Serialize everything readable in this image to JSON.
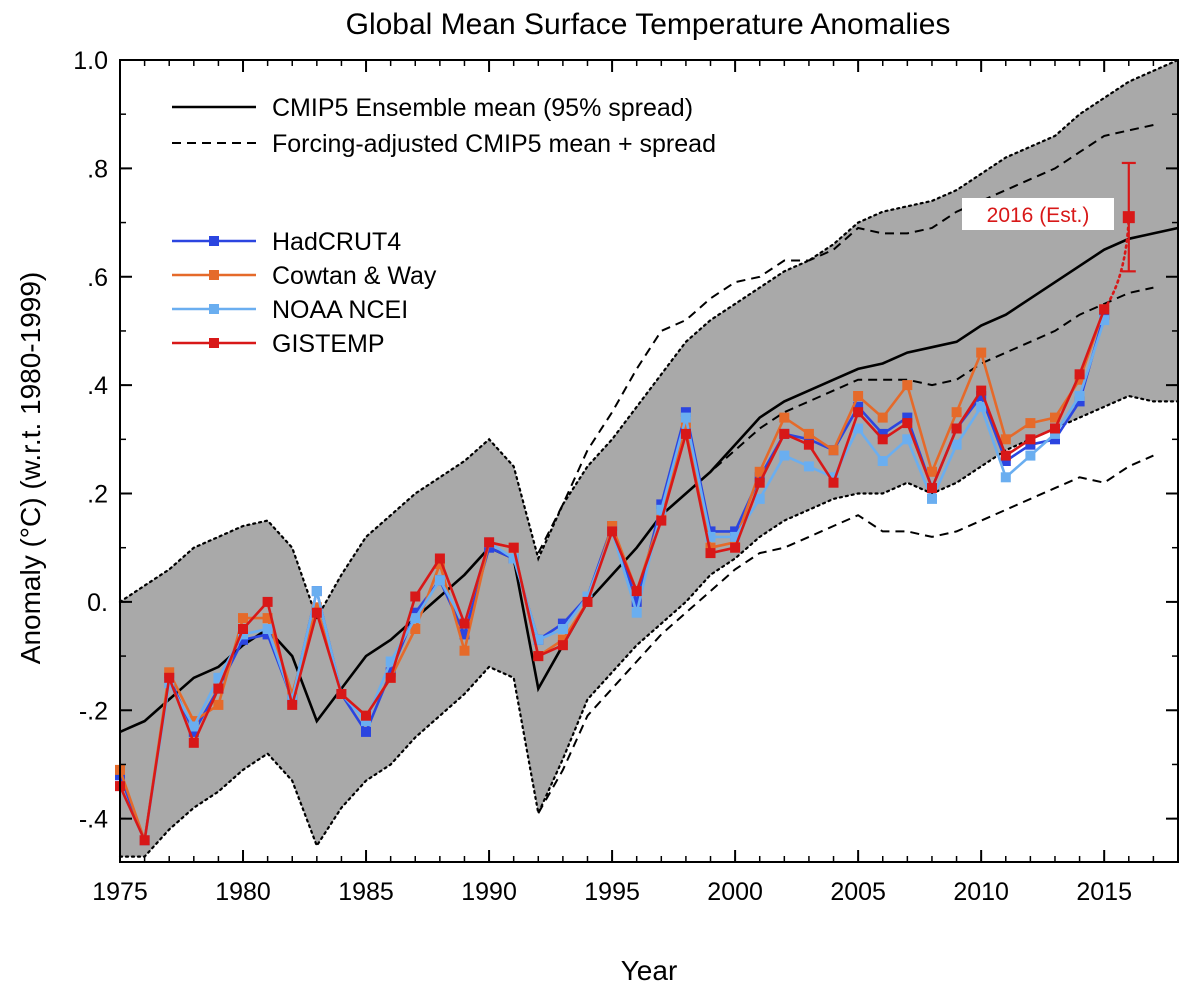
{
  "chart_data": {
    "type": "line",
    "title": "Global Mean Surface Temperature Anomalies",
    "xlabel": "Year",
    "ylabel": "Anomaly (°C) (w.r.t. 1980-1999)",
    "xlim": [
      1975,
      2018
    ],
    "ylim": [
      -0.48,
      1.0
    ],
    "x_ticks": [
      1975,
      1980,
      1985,
      1990,
      1995,
      2000,
      2005,
      2010,
      2015
    ],
    "y_ticks": [
      {
        "value": 1.0,
        "label": "1.0"
      },
      {
        "value": 0.8,
        "label": ".8"
      },
      {
        "value": 0.6,
        "label": ".6"
      },
      {
        "value": 0.4,
        "label": ".4"
      },
      {
        "value": 0.2,
        "label": ".2"
      },
      {
        "value": 0.0,
        "label": "0."
      },
      {
        "value": -0.2,
        "label": "-.2"
      },
      {
        "value": -0.4,
        "label": "-.4"
      }
    ],
    "grid": false,
    "legend_position": "top-left",
    "model": {
      "legend_solid": "CMIP5 Ensemble mean (95% spread)",
      "legend_dashed": "Forcing-adjusted CMIP5 mean + spread",
      "years": [
        1975,
        1976,
        1977,
        1978,
        1979,
        1980,
        1981,
        1982,
        1983,
        1984,
        1985,
        1986,
        1987,
        1988,
        1989,
        1990,
        1991,
        1992,
        1993,
        1994,
        1995,
        1996,
        1997,
        1998,
        1999,
        2000,
        2001,
        2002,
        2003,
        2004,
        2005,
        2006,
        2007,
        2008,
        2009,
        2010,
        2011,
        2012,
        2013,
        2014,
        2015,
        2016,
        2017,
        2018
      ],
      "mean": [
        -0.24,
        -0.22,
        -0.18,
        -0.14,
        -0.12,
        -0.08,
        -0.05,
        -0.1,
        -0.22,
        -0.16,
        -0.1,
        -0.07,
        -0.03,
        0.01,
        0.05,
        0.1,
        0.08,
        -0.16,
        -0.08,
        0.0,
        0.05,
        0.1,
        0.16,
        0.2,
        0.24,
        0.29,
        0.34,
        0.37,
        0.39,
        0.41,
        0.43,
        0.44,
        0.46,
        0.47,
        0.48,
        0.51,
        0.53,
        0.56,
        0.59,
        0.62,
        0.65,
        0.67,
        0.68,
        0.69
      ],
      "lower": [
        -0.47,
        -0.47,
        -0.42,
        -0.38,
        -0.35,
        -0.31,
        -0.28,
        -0.33,
        -0.45,
        -0.38,
        -0.33,
        -0.3,
        -0.25,
        -0.21,
        -0.17,
        -0.12,
        -0.14,
        -0.39,
        -0.29,
        -0.18,
        -0.13,
        -0.08,
        -0.04,
        0.0,
        0.05,
        0.08,
        0.12,
        0.15,
        0.17,
        0.19,
        0.2,
        0.2,
        0.22,
        0.2,
        0.22,
        0.25,
        0.28,
        0.3,
        0.32,
        0.34,
        0.36,
        0.38,
        0.37,
        0.37
      ],
      "upper": [
        0.0,
        0.03,
        0.06,
        0.1,
        0.12,
        0.14,
        0.15,
        0.1,
        -0.03,
        0.05,
        0.12,
        0.16,
        0.2,
        0.23,
        0.26,
        0.3,
        0.25,
        0.08,
        0.18,
        0.25,
        0.3,
        0.36,
        0.42,
        0.48,
        0.52,
        0.55,
        0.58,
        0.61,
        0.63,
        0.66,
        0.7,
        0.72,
        0.73,
        0.74,
        0.76,
        0.79,
        0.82,
        0.84,
        0.86,
        0.9,
        0.93,
        0.96,
        0.98,
        1.0
      ],
      "adj_years": [
        1992,
        1993,
        1994,
        1995,
        1996,
        1997,
        1998,
        1999,
        2000,
        2001,
        2002,
        2003,
        2004,
        2005,
        2006,
        2007,
        2008,
        2009,
        2010,
        2011,
        2012,
        2013,
        2014,
        2015,
        2016,
        2017
      ],
      "adj_mean": [
        -0.16,
        -0.08,
        0.0,
        0.05,
        0.1,
        0.16,
        0.2,
        0.24,
        0.28,
        0.32,
        0.35,
        0.37,
        0.39,
        0.41,
        0.41,
        0.41,
        0.4,
        0.41,
        0.44,
        0.46,
        0.48,
        0.5,
        0.53,
        0.55,
        0.57,
        0.58
      ],
      "adj_lower": [
        -0.39,
        -0.31,
        -0.21,
        -0.16,
        -0.11,
        -0.06,
        -0.02,
        0.02,
        0.06,
        0.09,
        0.1,
        0.12,
        0.14,
        0.16,
        0.13,
        0.13,
        0.12,
        0.13,
        0.15,
        0.17,
        0.19,
        0.21,
        0.23,
        0.22,
        0.25,
        0.27
      ],
      "adj_upper": [
        0.09,
        0.18,
        0.28,
        0.35,
        0.43,
        0.5,
        0.52,
        0.56,
        0.59,
        0.6,
        0.63,
        0.63,
        0.65,
        0.69,
        0.68,
        0.68,
        0.69,
        0.72,
        0.74,
        0.76,
        0.78,
        0.8,
        0.83,
        0.86,
        0.87,
        0.88
      ]
    },
    "years": [
      1975,
      1976,
      1977,
      1978,
      1979,
      1980,
      1981,
      1982,
      1983,
      1984,
      1985,
      1986,
      1987,
      1988,
      1989,
      1990,
      1991,
      1992,
      1993,
      1994,
      1995,
      1996,
      1997,
      1998,
      1999,
      2000,
      2001,
      2002,
      2003,
      2004,
      2005,
      2006,
      2007,
      2008,
      2009,
      2010,
      2011,
      2012,
      2013,
      2014,
      2015
    ],
    "series": [
      {
        "name": "HadCRUT4",
        "color": "#2b45e0",
        "values": [
          -0.32,
          -0.44,
          -0.14,
          -0.24,
          -0.16,
          -0.07,
          -0.06,
          -0.18,
          0.02,
          -0.17,
          -0.24,
          -0.13,
          -0.02,
          0.04,
          -0.06,
          0.1,
          0.08,
          -0.07,
          -0.04,
          0.01,
          0.14,
          0.0,
          0.18,
          0.35,
          0.13,
          0.13,
          0.23,
          0.31,
          0.3,
          0.28,
          0.36,
          0.31,
          0.34,
          0.21,
          0.32,
          0.38,
          0.26,
          0.29,
          0.3,
          0.37,
          0.53
        ]
      },
      {
        "name": "Cowtan & Way",
        "color": "#e56a2a",
        "values": [
          -0.31,
          -0.44,
          -0.13,
          -0.22,
          -0.19,
          -0.03,
          -0.03,
          -0.17,
          -0.01,
          -0.17,
          -0.21,
          -0.14,
          -0.05,
          0.07,
          -0.09,
          0.11,
          0.1,
          -0.1,
          -0.07,
          0.0,
          0.14,
          0.02,
          0.16,
          0.33,
          0.1,
          0.11,
          0.24,
          0.34,
          0.31,
          0.28,
          0.38,
          0.34,
          0.4,
          0.24,
          0.35,
          0.46,
          0.3,
          0.33,
          0.34,
          0.41,
          0.54
        ]
      },
      {
        "name": "NOAA NCEI",
        "color": "#6aaef0",
        "values": [
          -0.34,
          -0.44,
          -0.15,
          -0.23,
          -0.14,
          -0.06,
          -0.05,
          -0.18,
          0.02,
          -0.17,
          -0.22,
          -0.11,
          -0.03,
          0.04,
          -0.04,
          0.11,
          0.08,
          -0.07,
          -0.05,
          0.01,
          0.13,
          -0.02,
          0.17,
          0.34,
          0.12,
          0.12,
          0.19,
          0.27,
          0.25,
          0.23,
          0.32,
          0.26,
          0.3,
          0.19,
          0.29,
          0.36,
          0.23,
          0.27,
          0.31,
          0.38,
          0.52
        ]
      },
      {
        "name": "GISTEMP",
        "color": "#d81818",
        "values": [
          -0.34,
          -0.44,
          -0.14,
          -0.26,
          -0.16,
          -0.05,
          0.0,
          -0.19,
          -0.02,
          -0.17,
          -0.21,
          -0.14,
          0.01,
          0.08,
          -0.04,
          0.11,
          0.1,
          -0.1,
          -0.08,
          0.0,
          0.13,
          0.02,
          0.15,
          0.31,
          0.09,
          0.1,
          0.22,
          0.31,
          0.29,
          0.22,
          0.35,
          0.3,
          0.33,
          0.21,
          0.32,
          0.39,
          0.27,
          0.3,
          0.32,
          0.42,
          0.54
        ]
      }
    ],
    "estimate": {
      "label": "2016 (Est.)",
      "year": 2016,
      "value": 0.71,
      "low": 0.61,
      "high": 0.81,
      "color": "#d81818"
    }
  }
}
